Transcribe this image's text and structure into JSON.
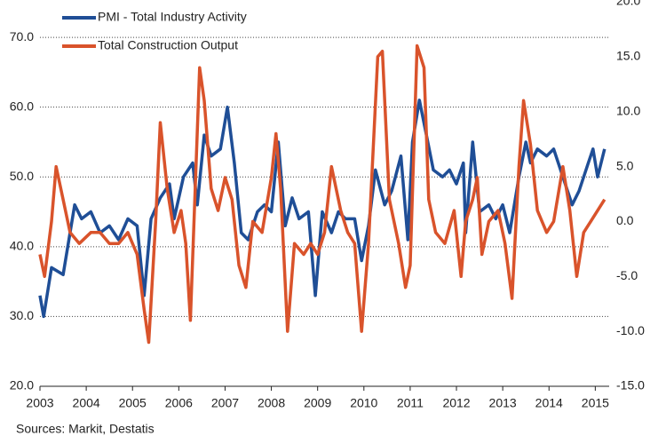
{
  "chart_data": {
    "type": "line",
    "source": "Sources: Markit, Destatis",
    "xlim": [
      2003,
      2015.3
    ],
    "xticks": [
      2003,
      2004,
      2005,
      2006,
      2007,
      2008,
      2009,
      2010,
      2011,
      2012,
      2013,
      2014,
      2015
    ],
    "ylim": [
      20,
      75.1
    ],
    "yticks": [
      {
        "value": 20,
        "label": "20.0"
      },
      {
        "value": 30,
        "label": "30.0"
      },
      {
        "value": 40,
        "label": "40.0"
      },
      {
        "value": 50,
        "label": "50.0"
      },
      {
        "value": 60,
        "label": "60.0"
      },
      {
        "value": 70,
        "label": "70.0"
      }
    ],
    "y2lim": [
      -15,
      20
    ],
    "y2ticks": [
      {
        "value": -15,
        "label": "-15.0"
      },
      {
        "value": -10,
        "label": "-10.0"
      },
      {
        "value": -5,
        "label": "-5.0"
      },
      {
        "value": 0,
        "label": "0.0"
      },
      {
        "value": 5,
        "label": "5.0"
      },
      {
        "value": 10,
        "label": "10.0"
      },
      {
        "value": 15,
        "label": "15.0"
      },
      {
        "value": 20,
        "label": "20.0"
      }
    ],
    "grid": true,
    "series": [
      {
        "name": "PMI - Total Industry Activity",
        "color": "#1f4e96",
        "axis": "y",
        "x": [
          2003.0,
          2003.08,
          2003.25,
          2003.5,
          2003.6,
          2003.75,
          2003.9,
          2004.1,
          2004.3,
          2004.5,
          2004.7,
          2004.9,
          2005.1,
          2005.25,
          2005.4,
          2005.6,
          2005.8,
          2005.9,
          2006.1,
          2006.3,
          2006.4,
          2006.55,
          2006.7,
          2006.9,
          2007.05,
          2007.2,
          2007.35,
          2007.5,
          2007.7,
          2007.85,
          2008.0,
          2008.15,
          2008.3,
          2008.45,
          2008.6,
          2008.8,
          2008.95,
          2009.1,
          2009.3,
          2009.45,
          2009.6,
          2009.8,
          2009.95,
          2010.1,
          2010.25,
          2010.45,
          2010.6,
          2010.8,
          2010.95,
          2011.05,
          2011.2,
          2011.35,
          2011.5,
          2011.7,
          2011.85,
          2012.0,
          2012.15,
          2012.2,
          2012.35,
          2012.5,
          2012.7,
          2012.85,
          2013.0,
          2013.15,
          2013.35,
          2013.5,
          2013.6,
          2013.75,
          2013.95,
          2014.1,
          2014.3,
          2014.5,
          2014.65,
          2014.85,
          2014.95,
          2015.05,
          2015.2
        ],
        "values": [
          33,
          30,
          37,
          36,
          40,
          46,
          44,
          45,
          42,
          43,
          41,
          44,
          43,
          33,
          44,
          47,
          49,
          44,
          50,
          52,
          46,
          56,
          53,
          54,
          60,
          52,
          42,
          41,
          45,
          46,
          45,
          55,
          43,
          47,
          44,
          45,
          33,
          45,
          42,
          45,
          44,
          44,
          38,
          43,
          51,
          46,
          48,
          53,
          41,
          55,
          61,
          56,
          51,
          50,
          51,
          49,
          52,
          42,
          55,
          45,
          46,
          44,
          46,
          42,
          50,
          55,
          52,
          54,
          53,
          54,
          50,
          46,
          48,
          52,
          54,
          50,
          54
        ]
      },
      {
        "name": "Total Construction Output",
        "color": "#d9532b",
        "axis": "y2",
        "x": [
          2003.0,
          2003.1,
          2003.25,
          2003.35,
          2003.5,
          2003.65,
          2003.85,
          2004.1,
          2004.3,
          2004.5,
          2004.7,
          2004.9,
          2005.1,
          2005.25,
          2005.35,
          2005.5,
          2005.6,
          2005.75,
          2005.9,
          2006.05,
          2006.15,
          2006.25,
          2006.45,
          2006.55,
          2006.7,
          2006.85,
          2007.0,
          2007.15,
          2007.3,
          2007.45,
          2007.6,
          2007.8,
          2008.0,
          2008.1,
          2008.2,
          2008.35,
          2008.5,
          2008.7,
          2008.85,
          2009.0,
          2009.15,
          2009.3,
          2009.5,
          2009.65,
          2009.8,
          2009.95,
          2010.1,
          2010.3,
          2010.4,
          2010.55,
          2010.75,
          2010.9,
          2011.0,
          2011.15,
          2011.3,
          2011.4,
          2011.55,
          2011.75,
          2011.95,
          2012.1,
          2012.2,
          2012.35,
          2012.45,
          2012.55,
          2012.7,
          2012.9,
          2013.05,
          2013.2,
          2013.35,
          2013.45,
          2013.6,
          2013.75,
          2013.95,
          2014.1,
          2014.3,
          2014.45,
          2014.6,
          2014.75,
          2014.9,
          2015.05,
          2015.2
        ],
        "values": [
          -3,
          -5,
          0,
          5,
          2,
          -1,
          -2,
          -1,
          -1,
          -2,
          -2,
          -1,
          -3,
          -8,
          -11,
          0,
          9,
          3,
          -1,
          1,
          -2,
          -9,
          14,
          11,
          3,
          1,
          4,
          2,
          -4,
          -6,
          0,
          -1,
          4,
          8,
          3,
          -10,
          -2,
          -3,
          -2,
          -3,
          -1,
          5,
          1,
          -1,
          -2,
          -10,
          -2,
          15,
          15.5,
          2,
          -2,
          -6,
          -4,
          16,
          14,
          2,
          -1,
          -2,
          1,
          -5,
          0,
          2,
          4,
          -3,
          0,
          1,
          -2,
          -7,
          5,
          11,
          7,
          1,
          -1,
          0,
          5,
          1,
          -5,
          -1,
          0,
          1,
          2
        ]
      }
    ]
  }
}
